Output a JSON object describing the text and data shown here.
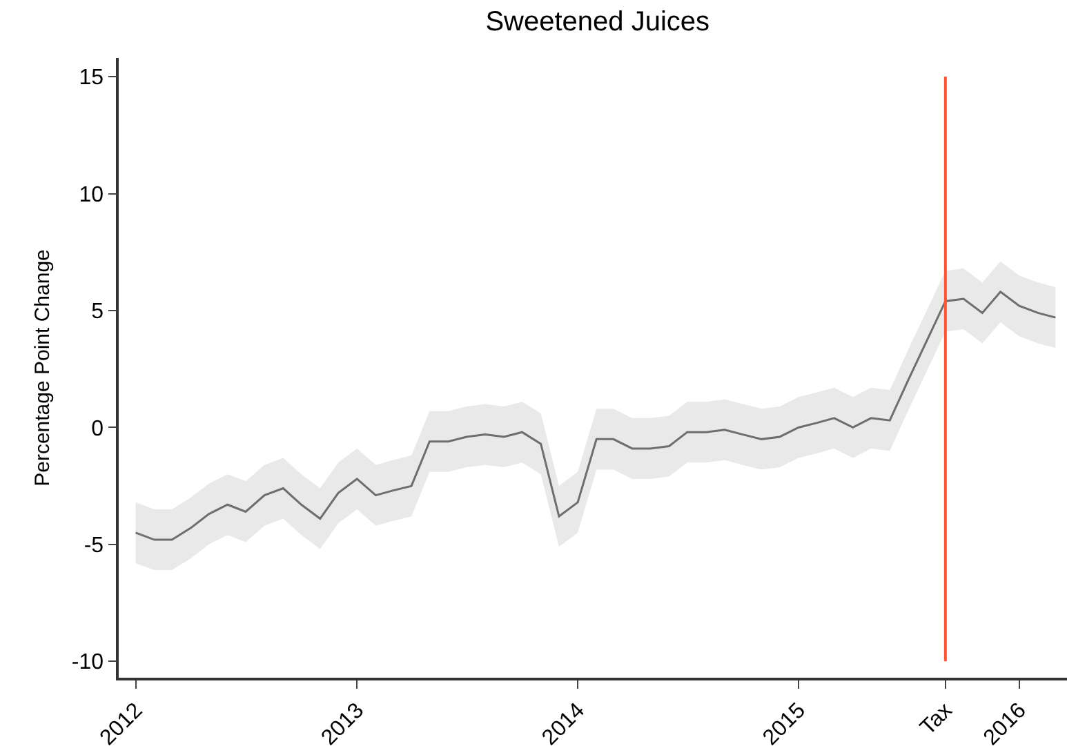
{
  "chart_data": {
    "type": "line",
    "title": "Sweetened Juices",
    "ylabel": "Percentage Point Change",
    "x": [
      "2012-01",
      "2012-02",
      "2012-03",
      "2012-04",
      "2012-05",
      "2012-06",
      "2012-07",
      "2012-08",
      "2012-09",
      "2012-10",
      "2012-11",
      "2012-12",
      "2013-01",
      "2013-02",
      "2013-03",
      "2013-04",
      "2013-05",
      "2013-06",
      "2013-07",
      "2013-08",
      "2013-09",
      "2013-10",
      "2013-11",
      "2013-12",
      "2014-01",
      "2014-02",
      "2014-03",
      "2014-04",
      "2014-05",
      "2014-06",
      "2014-07",
      "2014-08",
      "2014-09",
      "2014-10",
      "2014-11",
      "2014-12",
      "2015-01",
      "2015-02",
      "2015-03",
      "2015-04",
      "2015-05",
      "2015-06",
      "2015-07",
      "2015-08",
      "2015-09",
      "2015-10",
      "2015-11",
      "2015-12",
      "2016-01",
      "2016-02",
      "2016-03"
    ],
    "series": [
      {
        "color": "#6e6e6e",
        "values": [
          -4.5,
          -4.8,
          -4.8,
          -4.3,
          -3.7,
          -3.3,
          -3.6,
          -2.9,
          -2.6,
          -3.3,
          -3.9,
          -2.8,
          -2.2,
          -2.9,
          -2.7,
          -2.5,
          -0.6,
          -0.6,
          -0.4,
          -0.3,
          -0.4,
          -0.2,
          -0.7,
          -3.8,
          -3.2,
          -0.5,
          -0.5,
          -0.9,
          -0.9,
          -0.8,
          -0.2,
          -0.2,
          -0.1,
          -0.3,
          -0.5,
          -0.4,
          0.0,
          0.2,
          0.4,
          0.0,
          0.4,
          0.3,
          2.0,
          3.7,
          5.4,
          5.5,
          4.9,
          5.8,
          5.2,
          4.9,
          4.7
        ],
        "lower": [
          -5.8,
          -6.1,
          -6.1,
          -5.6,
          -5.0,
          -4.6,
          -4.9,
          -4.2,
          -3.9,
          -4.6,
          -5.2,
          -4.1,
          -3.5,
          -4.2,
          -4.0,
          -3.8,
          -1.9,
          -1.9,
          -1.7,
          -1.6,
          -1.7,
          -1.5,
          -2.0,
          -5.1,
          -4.5,
          -1.8,
          -1.8,
          -2.2,
          -2.2,
          -2.1,
          -1.5,
          -1.5,
          -1.4,
          -1.6,
          -1.8,
          -1.7,
          -1.3,
          -1.1,
          -0.9,
          -1.3,
          -0.9,
          -1.0,
          0.7,
          2.4,
          4.1,
          4.2,
          3.6,
          4.5,
          3.9,
          3.6,
          3.4
        ],
        "upper": [
          -3.2,
          -3.5,
          -3.5,
          -3.0,
          -2.4,
          -2.0,
          -2.3,
          -1.6,
          -1.3,
          -2.0,
          -2.6,
          -1.5,
          -0.9,
          -1.6,
          -1.4,
          -1.2,
          0.7,
          0.7,
          0.9,
          1.0,
          0.9,
          1.1,
          0.6,
          -2.5,
          -1.9,
          0.8,
          0.8,
          0.4,
          0.4,
          0.5,
          1.1,
          1.1,
          1.2,
          1.0,
          0.8,
          0.9,
          1.3,
          1.5,
          1.7,
          1.3,
          1.7,
          1.6,
          3.3,
          5.0,
          6.7,
          6.8,
          6.2,
          7.1,
          6.5,
          6.2,
          6.0
        ]
      }
    ],
    "xlim": [
      "2011-12-04",
      "2016-03-20"
    ],
    "xticks": [
      "2012",
      "2013",
      "2014",
      "2015",
      {
        "value": "2015-09",
        "label": "Tax"
      },
      "2016"
    ],
    "ylim": [
      -10.7,
      15.8
    ],
    "yticks": [
      -10,
      -5,
      0,
      5,
      10,
      15
    ],
    "ref_lines": [
      {
        "axis": "x",
        "value": "2015-09",
        "color": "#ff5533"
      }
    ],
    "grid": false,
    "marker": "none",
    "line_style": "solid"
  }
}
